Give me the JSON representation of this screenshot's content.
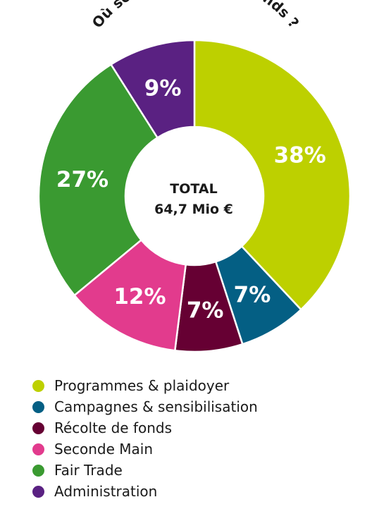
{
  "chart_data": {
    "type": "donut",
    "title": "Où sont investis nos fonds ?",
    "center_label": {
      "line1": "TOTAL",
      "line2": "64,7 Mio €"
    },
    "categories": [
      "Programmes & plaidoyer",
      "Campagnes & sensibilisation",
      "Récolte de fonds",
      "Seconde Main",
      "Fair Trade",
      "Administration"
    ],
    "values": [
      38,
      7,
      7,
      12,
      27,
      9
    ],
    "value_labels": [
      "38%",
      "7%",
      "7%",
      "12%",
      "27%",
      "9%"
    ],
    "colors": [
      "#bdd000",
      "#045f84",
      "#660033",
      "#e23b8d",
      "#3a9a31",
      "#5a2182"
    ],
    "legend_position": "bottom-left"
  }
}
